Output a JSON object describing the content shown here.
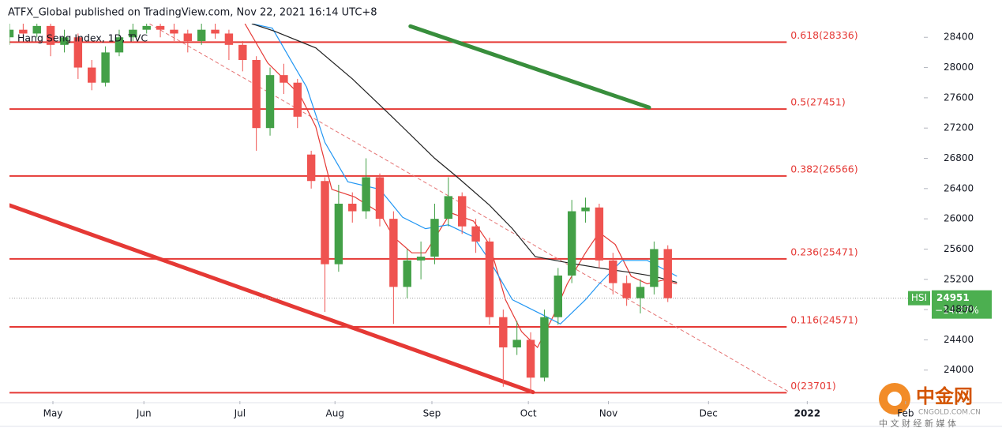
{
  "chart_data": {
    "type": "candlestick",
    "title": "ATFX_Global published on TradingView.com, Nov 22, 2021 16:14 UTC+8",
    "subtitle": "Hang Seng Index, 1D, TVC",
    "up_color": "#43a047",
    "down_color": "#ef5350",
    "x": [
      0,
      3,
      6,
      9,
      12,
      15,
      18,
      21,
      24,
      27,
      30,
      33,
      36,
      39,
      42,
      45,
      48,
      51,
      54,
      57,
      60,
      63,
      66,
      69,
      72,
      75,
      78,
      81,
      84,
      87,
      90,
      93,
      96,
      99,
      102,
      105,
      108,
      111,
      114,
      117,
      120,
      123,
      126,
      129,
      132,
      135,
      138,
      141,
      144
    ],
    "open": [
      28400,
      28500,
      28450,
      28550,
      28300,
      28400,
      28000,
      27800,
      28200,
      28400,
      28500,
      28550,
      28500,
      28450,
      28350,
      28500,
      28450,
      28300,
      28100,
      27200,
      27900,
      27800,
      26850,
      26500,
      25400,
      26200,
      26100,
      26550,
      26000,
      25100,
      25450,
      25500,
      26000,
      26300,
      25900,
      25700,
      24700,
      24300,
      24400,
      23900,
      24700,
      25250,
      26100,
      26150,
      25450,
      25150,
      24950,
      25100,
      25600
    ],
    "high": [
      28620,
      28600,
      28650,
      28600,
      28500,
      28450,
      28100,
      28280,
      28500,
      28600,
      28650,
      28620,
      28580,
      28500,
      28600,
      28580,
      28500,
      28350,
      28150,
      28000,
      28050,
      27850,
      26900,
      26550,
      26450,
      26350,
      26800,
      26600,
      26100,
      25600,
      25700,
      26200,
      26550,
      26350,
      26000,
      25750,
      24800,
      24650,
      24500,
      24800,
      25350,
      26250,
      26280,
      26200,
      25550,
      25250,
      25200,
      25700,
      25650
    ],
    "low": [
      28300,
      28380,
      28400,
      28150,
      28200,
      27850,
      27700,
      27750,
      28150,
      28350,
      28450,
      28400,
      28350,
      28200,
      28300,
      28380,
      28100,
      27950,
      26900,
      27100,
      27650,
      27200,
      26400,
      24770,
      25300,
      25950,
      26000,
      25900,
      24610,
      24950,
      25200,
      25400,
      25900,
      25800,
      25550,
      24600,
      23780,
      24200,
      23700,
      23850,
      24600,
      25150,
      25950,
      25350,
      25000,
      24850,
      24750,
      25000,
      24900
    ],
    "close": [
      28500,
      28450,
      28550,
      28300,
      28400,
      28000,
      27800,
      28200,
      28400,
      28500,
      28550,
      28500,
      28450,
      28350,
      28500,
      28450,
      28300,
      28100,
      27200,
      27900,
      27800,
      27350,
      26500,
      25400,
      26200,
      26100,
      26550,
      26000,
      25100,
      25450,
      25500,
      26000,
      26300,
      25900,
      25700,
      24700,
      24300,
      24400,
      23900,
      24700,
      25250,
      26100,
      26150,
      25450,
      25150,
      24950,
      25100,
      25600,
      24951
    ],
    "series": [
      {
        "color": "#e53935",
        "x": [
          51.5,
          56.5,
          60,
          63.5,
          67,
          70.5,
          75.5,
          81,
          84,
          88,
          91,
          96.5,
          101.5,
          105,
          108.5,
          112,
          115.5,
          119,
          122,
          126,
          129,
          132.5,
          136,
          139.5,
          143,
          146
        ],
        "values": [
          28580,
          28060,
          27850,
          27640,
          27220,
          26390,
          26290,
          26080,
          25760,
          25550,
          25550,
          26080,
          25970,
          25660,
          24930,
          24510,
          24300,
          24720,
          25140,
          25550,
          25820,
          25660,
          25240,
          25140,
          25190,
          25140
        ]
      },
      {
        "color": "#2196f3",
        "x": [
          53,
          57.5,
          62,
          65,
          69,
          74,
          81,
          86,
          91,
          96,
          101.5,
          105,
          110,
          117,
          120.5,
          126,
          129,
          134,
          139.5,
          146
        ],
        "values": [
          28580,
          28520,
          28050,
          27740,
          27010,
          26490,
          26390,
          26020,
          25870,
          25920,
          25760,
          25450,
          24930,
          24720,
          24610,
          24930,
          25140,
          25450,
          25450,
          25240
        ]
      },
      {
        "color": "#212121",
        "x": [
          53,
          58,
          67,
          75,
          84,
          93,
          98,
          105,
          110,
          115,
          122,
          129,
          136,
          141,
          146
        ],
        "values": [
          28580,
          28480,
          28260,
          27850,
          27330,
          26800,
          26550,
          26180,
          25870,
          25500,
          25420,
          25350,
          25290,
          25240,
          25160
        ]
      }
    ],
    "fib_levels": [
      {
        "label": "0.618(28336)",
        "value": 28336
      },
      {
        "label": "0.5(27451)",
        "value": 27451
      },
      {
        "label": "0.382(26566)",
        "value": 26566
      },
      {
        "label": "0.236(25471)",
        "value": 25471
      },
      {
        "label": "0.116(24571)",
        "value": 24571
      },
      {
        "label": "0(23701)",
        "value": 23701
      }
    ],
    "fib_color": "#e53935",
    "fib_end": 170,
    "trendlines": [
      {
        "color": "#e53935",
        "style": "solid",
        "width": 5,
        "x": [
          0,
          114.5
        ],
        "values": [
          26179,
          23708
        ]
      },
      {
        "color": "#388e3c",
        "style": "solid",
        "width": 5,
        "x": [
          87.7,
          139.9
        ],
        "values": [
          28546,
          27472
        ]
      },
      {
        "color": "#e57373",
        "style": "dashed",
        "width": 1,
        "x": [
          30.7,
          170.6
        ],
        "values": [
          28577,
          23708
        ]
      }
    ],
    "price_label": {
      "symbol": "HSI",
      "value": 24951,
      "change": "−14.27%",
      "color": "#4caf50"
    },
    "xlim": [
      0,
      200
    ],
    "ylim": [
      23590,
      28580
    ],
    "xticks": [
      {
        "value": 9.5,
        "label": "May"
      },
      {
        "value": 29.4,
        "label": "Jun"
      },
      {
        "value": 50.4,
        "label": "Jul"
      },
      {
        "value": 71.2,
        "label": "Aug"
      },
      {
        "value": 92.4,
        "label": "Sep"
      },
      {
        "value": 113.5,
        "label": "Oct"
      },
      {
        "value": 131,
        "label": "Nov"
      },
      {
        "value": 152.9,
        "label": "Dec"
      },
      {
        "value": 174.5,
        "label": "2022"
      },
      {
        "value": 196,
        "label": "Feb"
      }
    ],
    "yticks": [
      24000,
      24400,
      24800,
      25200,
      25600,
      26000,
      26400,
      26800,
      27200,
      27600,
      28000,
      28400
    ],
    "watermark": {
      "name": "中金网",
      "site": "CNGOLD.COM.CN",
      "tagline": "中 文 财 经 新 媒 体"
    }
  }
}
